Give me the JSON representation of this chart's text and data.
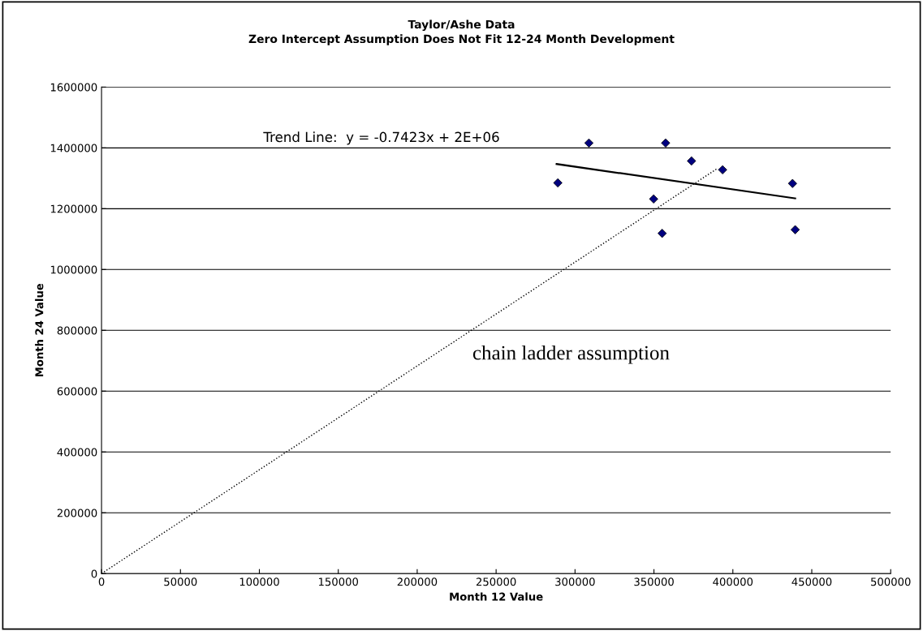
{
  "chart_data": {
    "type": "scatter",
    "title": "Taylor/Ashe Data",
    "subtitle": "Zero Intercept Assumption Does Not Fit 12-24 Month Development",
    "xlabel": "Month 12 Value",
    "ylabel": "Month 24 Value",
    "annotations": [
      "Trend Line:  y = -0.7423x + 2E+06",
      "chain ladder assumption"
    ],
    "series": [
      {
        "color": "#000080",
        "marker": "diamond",
        "x": [
          289100,
          308800,
          357400,
          373800,
          393500,
          349800,
          355200,
          437800,
          439500
        ],
        "values": [
          1285000,
          1416000,
          1416000,
          1357000,
          1328000,
          1232000,
          1119000,
          1283000,
          1131000
        ]
      },
      {
        "type": "line",
        "color": "#000000",
        "line_style": "solid",
        "x": [
          288300,
          439500
        ],
        "values": [
          1347000,
          1234000
        ]
      },
      {
        "type": "line",
        "color": "#000000",
        "line_style": "dotted",
        "x": [
          0,
          390100
        ],
        "values": [
          0,
          1332000
        ]
      }
    ],
    "xlim": [
      0,
      500000
    ],
    "xticks": [
      0,
      50000,
      100000,
      150000,
      200000,
      250000,
      300000,
      350000,
      400000,
      450000,
      500000
    ],
    "ylim": [
      0,
      1600000
    ],
    "yticks": [
      0,
      200000,
      400000,
      600000,
      800000,
      1000000,
      1200000,
      1400000,
      1600000
    ],
    "grid": "y",
    "legend": false
  }
}
